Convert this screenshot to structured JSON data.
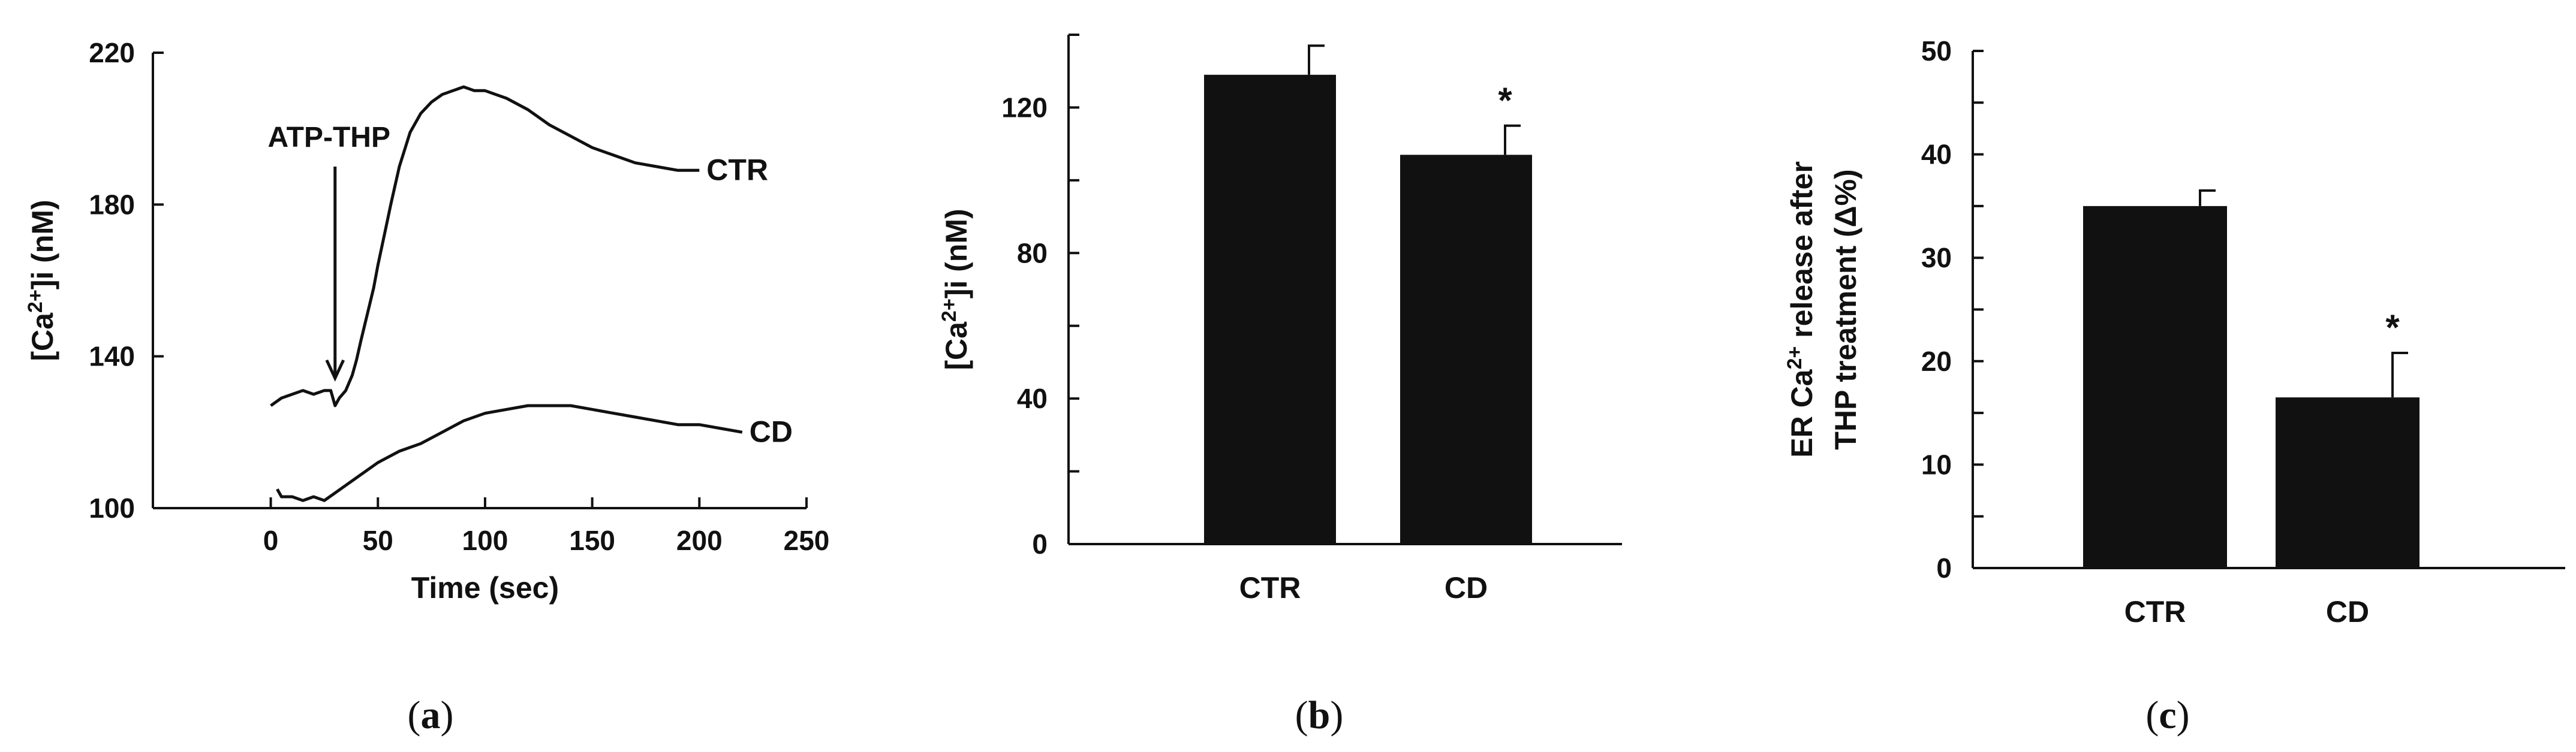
{
  "colors": {
    "ink": "#111111",
    "background": "#ffffff"
  },
  "chart_data": [
    {
      "panel": "(a)",
      "type": "line",
      "xlabel": "Time (sec)",
      "ylabel": "[Ca2+]i (nM)",
      "ylabel_parts": [
        "[Ca",
        "2+",
        "]i (nM)"
      ],
      "xlim": [
        -55,
        250
      ],
      "ylim": [
        100,
        220
      ],
      "xticks": [
        0,
        50,
        100,
        150,
        200,
        250
      ],
      "yticks": [
        100,
        140,
        180,
        220
      ],
      "grid": false,
      "annotations": [
        {
          "text": "ATP-THP",
          "x": 30,
          "y": 133
        }
      ],
      "series": [
        {
          "name": "CTR",
          "x": [
            0,
            5,
            10,
            15,
            20,
            25,
            28,
            30,
            32,
            35,
            38,
            40,
            42,
            45,
            48,
            50,
            53,
            56,
            60,
            65,
            70,
            75,
            80,
            85,
            90,
            95,
            100,
            105,
            110,
            120,
            130,
            140,
            150,
            160,
            170,
            180,
            190,
            200
          ],
          "y": [
            127,
            129,
            130,
            131,
            130,
            131,
            131,
            127,
            129,
            131,
            135,
            139,
            144,
            151,
            158,
            164,
            172,
            180,
            190,
            199,
            204,
            207,
            209,
            210,
            211,
            210,
            210,
            209,
            208,
            205,
            201,
            198,
            195,
            193,
            191,
            190,
            189,
            189
          ]
        },
        {
          "name": "CD",
          "x": [
            3,
            5,
            10,
            15,
            20,
            25,
            30,
            35,
            40,
            50,
            60,
            70,
            80,
            90,
            100,
            110,
            120,
            130,
            140,
            150,
            160,
            170,
            180,
            190,
            200,
            210,
            220
          ],
          "y": [
            105,
            103,
            103,
            102,
            103,
            102,
            104,
            106,
            108,
            112,
            115,
            117,
            120,
            123,
            125,
            126,
            127,
            127,
            127,
            126,
            125,
            124,
            123,
            122,
            122,
            121,
            120
          ]
        }
      ]
    },
    {
      "panel": "(b)",
      "type": "bar",
      "ylabel": "[Ca2+]i (nM)",
      "ylabel_parts": [
        "[Ca",
        "2+",
        "]i (nM)"
      ],
      "categories": [
        "CTR",
        "CD"
      ],
      "values": [
        129,
        107
      ],
      "errors": [
        8,
        8
      ],
      "significance": [
        "",
        "*"
      ],
      "ylim": [
        0,
        140
      ],
      "yticks": [
        0,
        40,
        80,
        120
      ],
      "grid": false
    },
    {
      "panel": "(c)",
      "type": "bar",
      "ylabel": "ER Ca2+ release after THP treatment (Δ%)",
      "ylabel_line1_parts": [
        "ER Ca",
        "2+",
        " release after"
      ],
      "ylabel_line2": "THP treatment (Δ%)",
      "categories": [
        "CTR",
        "CD"
      ],
      "values": [
        35,
        16.5
      ],
      "errors": [
        1.5,
        4.3
      ],
      "significance": [
        "",
        "*"
      ],
      "ylim": [
        0,
        50
      ],
      "yticks": [
        0,
        10,
        20,
        30,
        40,
        50
      ],
      "grid": false
    }
  ]
}
